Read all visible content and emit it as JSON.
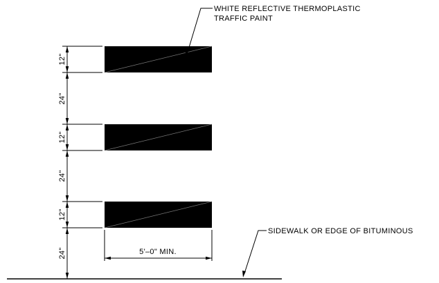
{
  "callouts": {
    "paint_line1": "WHITE REFLECTIVE THERMOPLASTIC",
    "paint_line2": "TRAFFIC PAINT",
    "edge": "SIDEWALK OR EDGE OF BITUMINOUS"
  },
  "dimensions": {
    "bar_height": "12\"",
    "gap": "24\"",
    "bar_length": "5'–0\" MIN."
  },
  "stripe_count": 3,
  "stripe_color": "#000000"
}
